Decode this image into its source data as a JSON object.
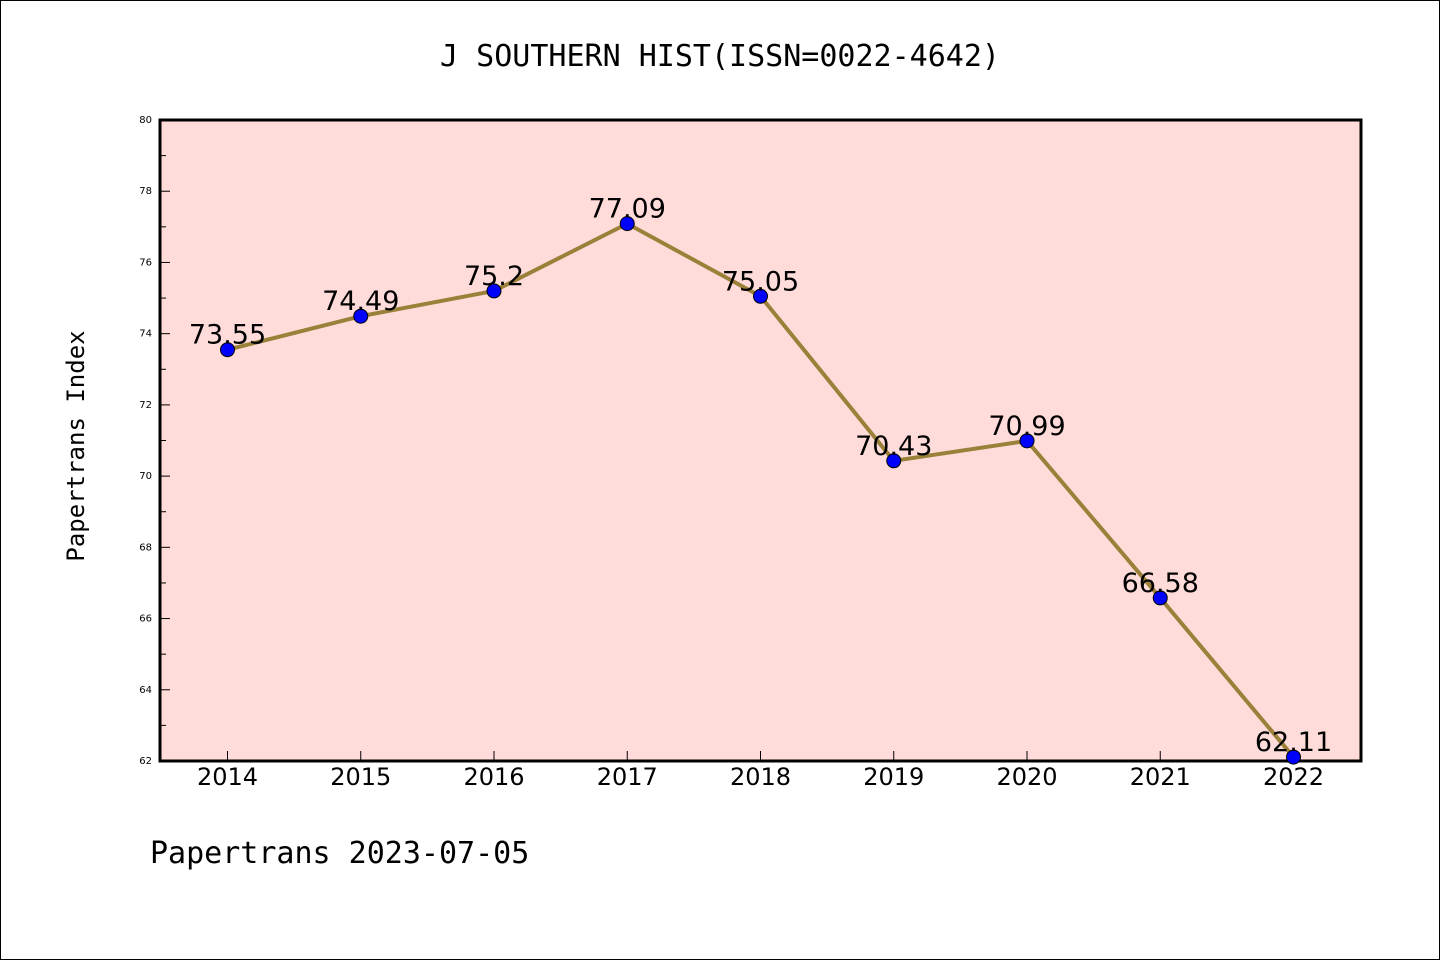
{
  "chart_data": {
    "type": "line",
    "title": "J SOUTHERN HIST(ISSN=0022-4642)",
    "xlabel": "",
    "ylabel": "Papertrans Index",
    "footer": "Papertrans 2023-07-05",
    "x": [
      "2014",
      "2015",
      "2016",
      "2017",
      "2018",
      "2019",
      "2020",
      "2021",
      "2022"
    ],
    "series": [
      {
        "values": [
          73.55,
          74.49,
          75.2,
          77.09,
          75.05,
          70.43,
          70.99,
          66.58,
          62.11
        ],
        "labels": [
          "73.55",
          "74.49",
          "75.2",
          "77.09",
          "75.05",
          "70.43",
          "70.99",
          "66.58",
          "62.11"
        ]
      }
    ],
    "ylim": [
      62,
      80
    ],
    "yticks": [
      "62",
      "64",
      "66",
      "68",
      "70",
      "72",
      "74",
      "76",
      "78",
      "80"
    ],
    "grid": false,
    "legend": "none",
    "colors": {
      "plot_background": "#ffdcd9",
      "line": "#9b8039",
      "marker": "#0000ff"
    }
  }
}
